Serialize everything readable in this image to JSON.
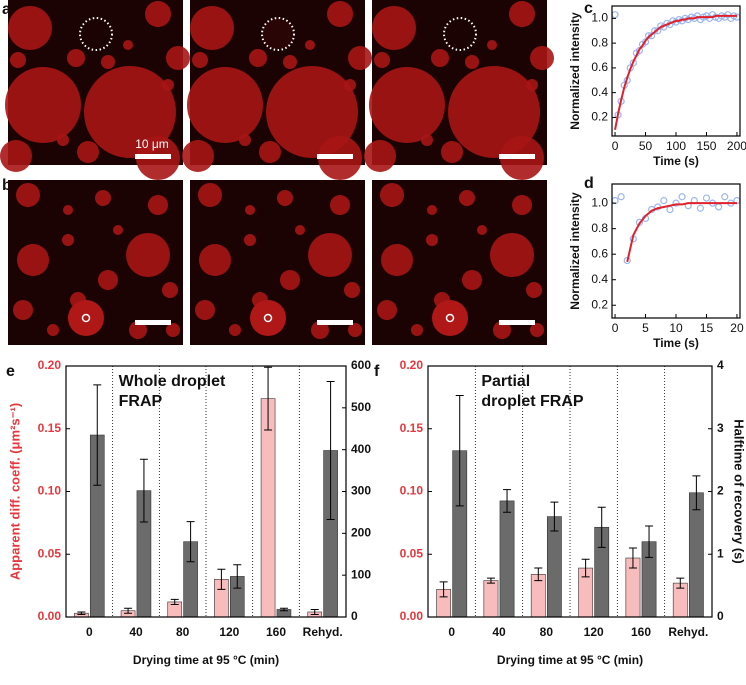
{
  "panel_labels": [
    "a",
    "b",
    "c",
    "d",
    "e",
    "f"
  ],
  "scale_bar_label": "10 μm",
  "chart_data": [
    {
      "type": "line",
      "xlabel": "Time (s)",
      "ylabel": "Normalized intensity",
      "x": [
        0,
        5,
        10,
        15,
        20,
        25,
        30,
        35,
        40,
        45,
        50,
        55,
        60,
        65,
        70,
        75,
        80,
        85,
        90,
        95,
        100,
        105,
        110,
        115,
        120,
        125,
        130,
        135,
        140,
        145,
        150,
        155,
        160,
        165,
        170,
        175,
        180,
        185,
        190,
        195,
        200
      ],
      "series": [
        {
          "color": "#9db6ef",
          "mark": "circle",
          "values": [
            1.03,
            0.22,
            0.33,
            0.46,
            0.5,
            0.6,
            0.64,
            0.72,
            0.74,
            0.79,
            0.81,
            0.86,
            0.86,
            0.9,
            0.9,
            0.94,
            0.93,
            0.96,
            0.95,
            0.98,
            0.97,
            0.99,
            0.98,
            1.0,
            0.99,
            1.01,
            1.0,
            1.02,
            0.99,
            1.01,
            1.02,
            1.0,
            1.03,
            1.01,
            1.0,
            1.02,
            1.01,
            1.03,
            1.0,
            1.02,
            1.01
          ]
        },
        {
          "color": "#e0202a",
          "mark": "line",
          "values": [
            0.1,
            0.23,
            0.34,
            0.44,
            0.52,
            0.59,
            0.65,
            0.7,
            0.75,
            0.78,
            0.82,
            0.85,
            0.87,
            0.89,
            0.91,
            0.93,
            0.94,
            0.95,
            0.96,
            0.97,
            0.98,
            0.98,
            0.99,
            0.99,
            1.0,
            1.0,
            1.0,
            1.01,
            1.01,
            1.01,
            1.01,
            1.01,
            1.01,
            1.02,
            1.02,
            1.02,
            1.02,
            1.02,
            1.02,
            1.02,
            1.02
          ]
        }
      ],
      "xlim": [
        -5,
        205
      ],
      "xticks": [
        0,
        50,
        100,
        150,
        200
      ],
      "ylim": [
        0.05,
        1.1
      ],
      "yticks": [
        0.2,
        0.4,
        0.6,
        0.8,
        {
          "value": 1,
          "label": "1.0"
        }
      ]
    },
    {
      "type": "line",
      "xlabel": "Time (s)",
      "ylabel": "Normalized intensity",
      "x": [
        0,
        1,
        2,
        3,
        4,
        5,
        6,
        7,
        8,
        9,
        10,
        11,
        12,
        13,
        14,
        15,
        16,
        17,
        18,
        19,
        20
      ],
      "series": [
        {
          "color": "#9db6ef",
          "mark": "circle",
          "values": [
            1.02,
            1.05,
            0.55,
            0.72,
            0.85,
            0.88,
            0.95,
            0.97,
            1.02,
            0.95,
            1.0,
            1.05,
            0.98,
            1.02,
            0.96,
            1.04,
            1.0,
            0.97,
            1.05,
            1.0,
            1.02
          ]
        },
        {
          "color": "#e0202a",
          "mark": "line",
          "values": [
            null,
            null,
            0.54,
            0.75,
            0.84,
            0.9,
            0.94,
            0.96,
            0.97,
            0.98,
            0.99,
            0.99,
            1.0,
            1.0,
            1.0,
            1.0,
            1.0,
            1.0,
            1.0,
            1.0,
            1.0
          ]
        }
      ],
      "xlim": [
        -0.5,
        20.5
      ],
      "xticks": [
        0,
        5,
        10,
        15,
        20
      ],
      "ylim": [
        0.1,
        1.15
      ],
      "yticks": [
        0.2,
        0.4,
        0.6,
        0.8,
        {
          "value": 1,
          "label": "1.0"
        }
      ]
    },
    {
      "type": "bar",
      "annotation": [
        "Whole droplet",
        "FRAP"
      ],
      "xlabel": "Drying time at 95 °C (min)",
      "ylabel": "Apparent diff. coeff. (μm²s⁻¹)",
      "y_axis_color": "#e8363c",
      "categories": [
        "0",
        "40",
        "80",
        "120",
        "160",
        "Rehyd."
      ],
      "series": [
        {
          "color": "#f8bcbc",
          "values": [
            0.003,
            0.005,
            0.012,
            0.03,
            0.174,
            0.004
          ],
          "errors": [
            0.001,
            0.002,
            0.002,
            0.008,
            0.025,
            0.002
          ]
        },
        {
          "color": "#6b6b6b",
          "axis": "y2",
          "values": [
            435,
            302,
            180,
            97,
            18,
            398
          ],
          "errors": [
            120,
            75,
            48,
            28,
            3,
            165
          ]
        }
      ],
      "ylim": [
        0,
        0.2
      ],
      "yticks": [
        {
          "value": 0,
          "label": "0.00"
        },
        0.05,
        {
          "value": 0.1,
          "label": "0.10"
        },
        0.15,
        {
          "value": 0.2,
          "label": "0.20"
        }
      ],
      "y2lim": [
        0,
        600
      ],
      "y2ticks": [
        0,
        100,
        200,
        300,
        400,
        500,
        600
      ]
    },
    {
      "type": "bar",
      "annotation": [
        "Partial",
        "droplet FRAP"
      ],
      "xlabel": "Drying time at 95 °C (min)",
      "y2label": "Halftime of recovery (s)",
      "y_axis_color": "#e8363c",
      "categories": [
        "0",
        "40",
        "80",
        "120",
        "160",
        "Rehyd."
      ],
      "series": [
        {
          "color": "#f8bcbc",
          "values": [
            0.022,
            0.029,
            0.034,
            0.039,
            0.047,
            0.027
          ],
          "errors": [
            0.006,
            0.002,
            0.005,
            0.007,
            0.008,
            0.004
          ]
        },
        {
          "color": "#6b6b6b",
          "axis": "y2",
          "values": [
            2.65,
            1.85,
            1.6,
            1.43,
            1.2,
            1.98
          ],
          "errors": [
            0.88,
            0.18,
            0.23,
            0.32,
            0.25,
            0.27
          ]
        }
      ],
      "ylim": [
        0,
        0.2
      ],
      "yticks": [
        {
          "value": 0,
          "label": "0.00"
        },
        0.05,
        {
          "value": 0.1,
          "label": "0.10"
        },
        0.15,
        {
          "value": 0.2,
          "label": "0.20"
        }
      ],
      "y2lim": [
        0,
        4
      ],
      "y2ticks": [
        0,
        1,
        2,
        3,
        4
      ]
    }
  ]
}
